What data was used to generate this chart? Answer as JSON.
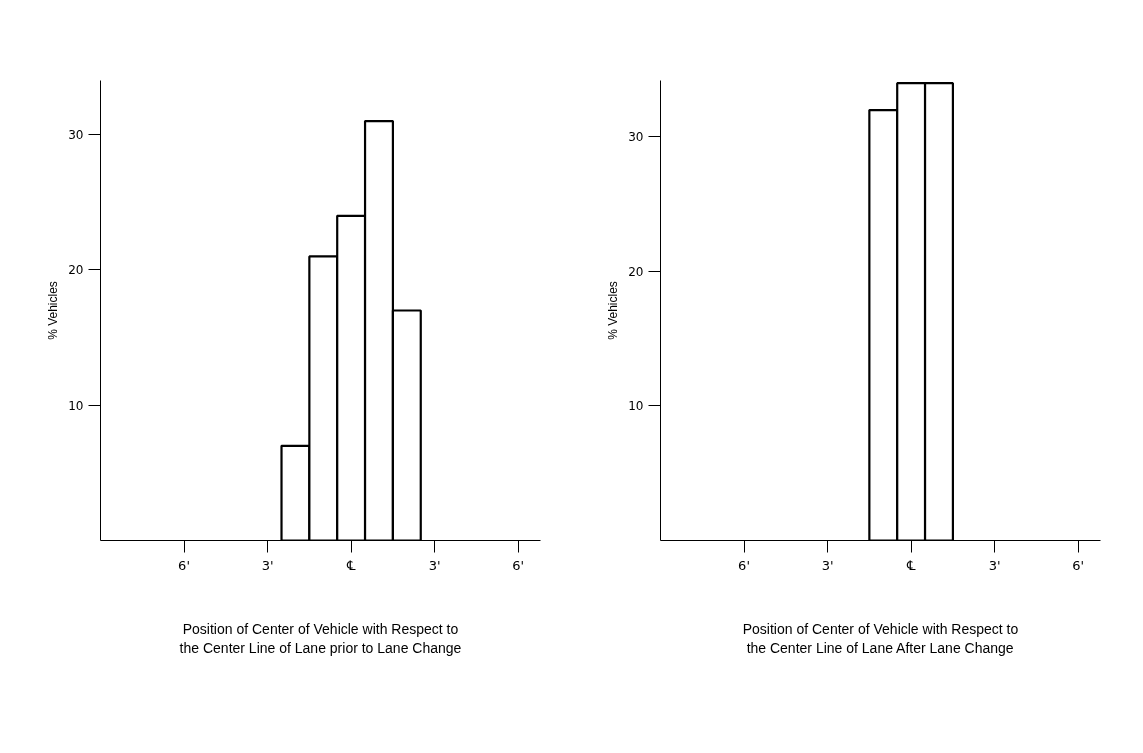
{
  "chart_data": [
    {
      "type": "histogram",
      "xlabel": "Position of Center of Vehicle with Respect to\nthe Center Line of Lane prior to Lane Change",
      "ylabel": "% Vehicles",
      "bins": [
        -2.5,
        -1.5,
        -0.5,
        0.5,
        1.5,
        2.5
      ],
      "values": [
        7,
        21,
        24,
        31,
        17
      ],
      "color": "#ffffff",
      "xlim": [
        -9,
        6.8
      ],
      "xticks": [
        {
          "value": -6,
          "label": "6'"
        },
        {
          "value": -3,
          "label": "3'"
        },
        {
          "value": 0,
          "label": "℄"
        },
        {
          "value": 3,
          "label": "3'"
        },
        {
          "value": 6,
          "label": "6'"
        }
      ],
      "ylim": [
        0,
        34
      ],
      "yticks": [
        10,
        20,
        30
      ],
      "grid": false
    },
    {
      "type": "histogram",
      "xlabel": "Position of Center of Vehicle with Respect to\nthe Center Line of Lane After Lane Change",
      "ylabel": "% Vehicles",
      "bins": [
        -1.5,
        -0.5,
        0.5,
        1.5
      ],
      "values": [
        32,
        34,
        34
      ],
      "color": "#ffffff",
      "xlim": [
        -9,
        6.8
      ],
      "xticks": [
        {
          "value": -6,
          "label": "6'"
        },
        {
          "value": -3,
          "label": "3'"
        },
        {
          "value": 0,
          "label": "℄"
        },
        {
          "value": 3,
          "label": "3'"
        },
        {
          "value": 6,
          "label": "6'"
        }
      ],
      "ylim": [
        0,
        34.2
      ],
      "yticks": [
        10,
        20,
        30
      ],
      "grid": false
    }
  ]
}
